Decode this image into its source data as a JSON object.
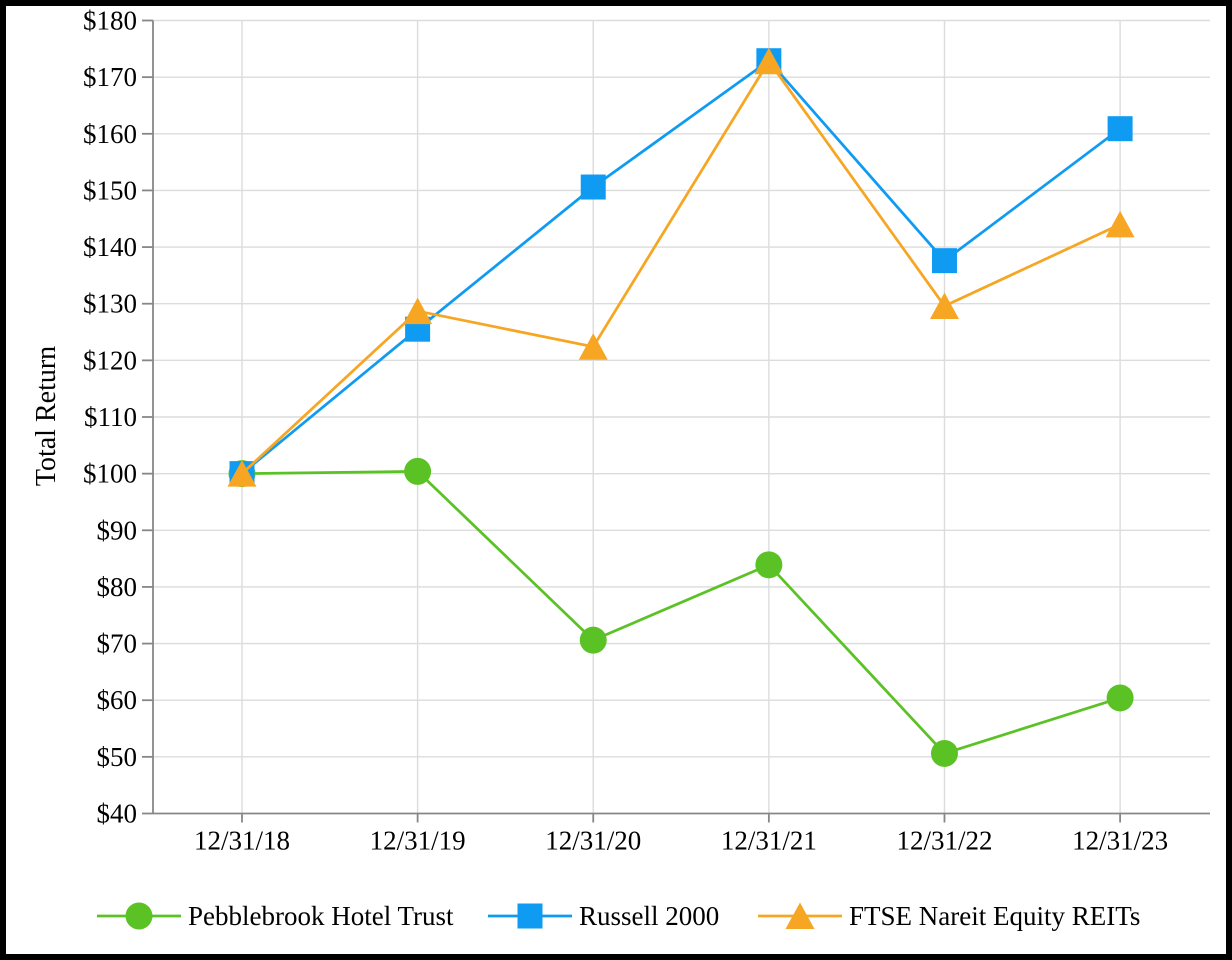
{
  "chart_data": {
    "type": "line",
    "title": "",
    "ylabel": "Total Return",
    "xlabel": "",
    "categories": [
      "12/31/18",
      "12/31/19",
      "12/31/20",
      "12/31/21",
      "12/31/22",
      "12/31/23"
    ],
    "series": [
      {
        "name": "Pebblebrook Hotel Trust",
        "marker": "circle",
        "color": "#5BC226",
        "values": [
          100,
          100.4,
          70.6,
          83.9,
          50.6,
          60.4
        ]
      },
      {
        "name": "Russell 2000",
        "marker": "square",
        "color": "#109BF3",
        "values": [
          100,
          125.5,
          150.6,
          172.9,
          137.6,
          160.9
        ]
      },
      {
        "name": "FTSE Nareit Equity REITs",
        "marker": "triangle",
        "color": "#F6A623",
        "values": [
          100,
          128.7,
          122.4,
          172.8,
          129.6,
          144.0
        ]
      }
    ],
    "y_ticks": [
      {
        "label": "$40",
        "value": 40
      },
      {
        "label": "$50",
        "value": 50
      },
      {
        "label": "$60",
        "value": 60
      },
      {
        "label": "$70",
        "value": 70
      },
      {
        "label": "$80",
        "value": 80
      },
      {
        "label": "$90",
        "value": 90
      },
      {
        "label": "$100",
        "value": 100
      },
      {
        "label": "$110",
        "value": 110
      },
      {
        "label": "$120",
        "value": 120
      },
      {
        "label": "$130",
        "value": 130
      },
      {
        "label": "$140",
        "value": 140
      },
      {
        "label": "$150",
        "value": 150
      },
      {
        "label": "$160",
        "value": 160
      },
      {
        "label": "$170",
        "value": 170
      },
      {
        "label": "$180",
        "value": 180
      }
    ],
    "ylim": [
      40,
      180
    ],
    "grid": true,
    "legend_position": "bottom",
    "colors": {
      "gridline": "#DCDCDC",
      "axis": "#878787",
      "text": "#000000",
      "background": "#FFFFFF",
      "frame": "#000000"
    }
  }
}
